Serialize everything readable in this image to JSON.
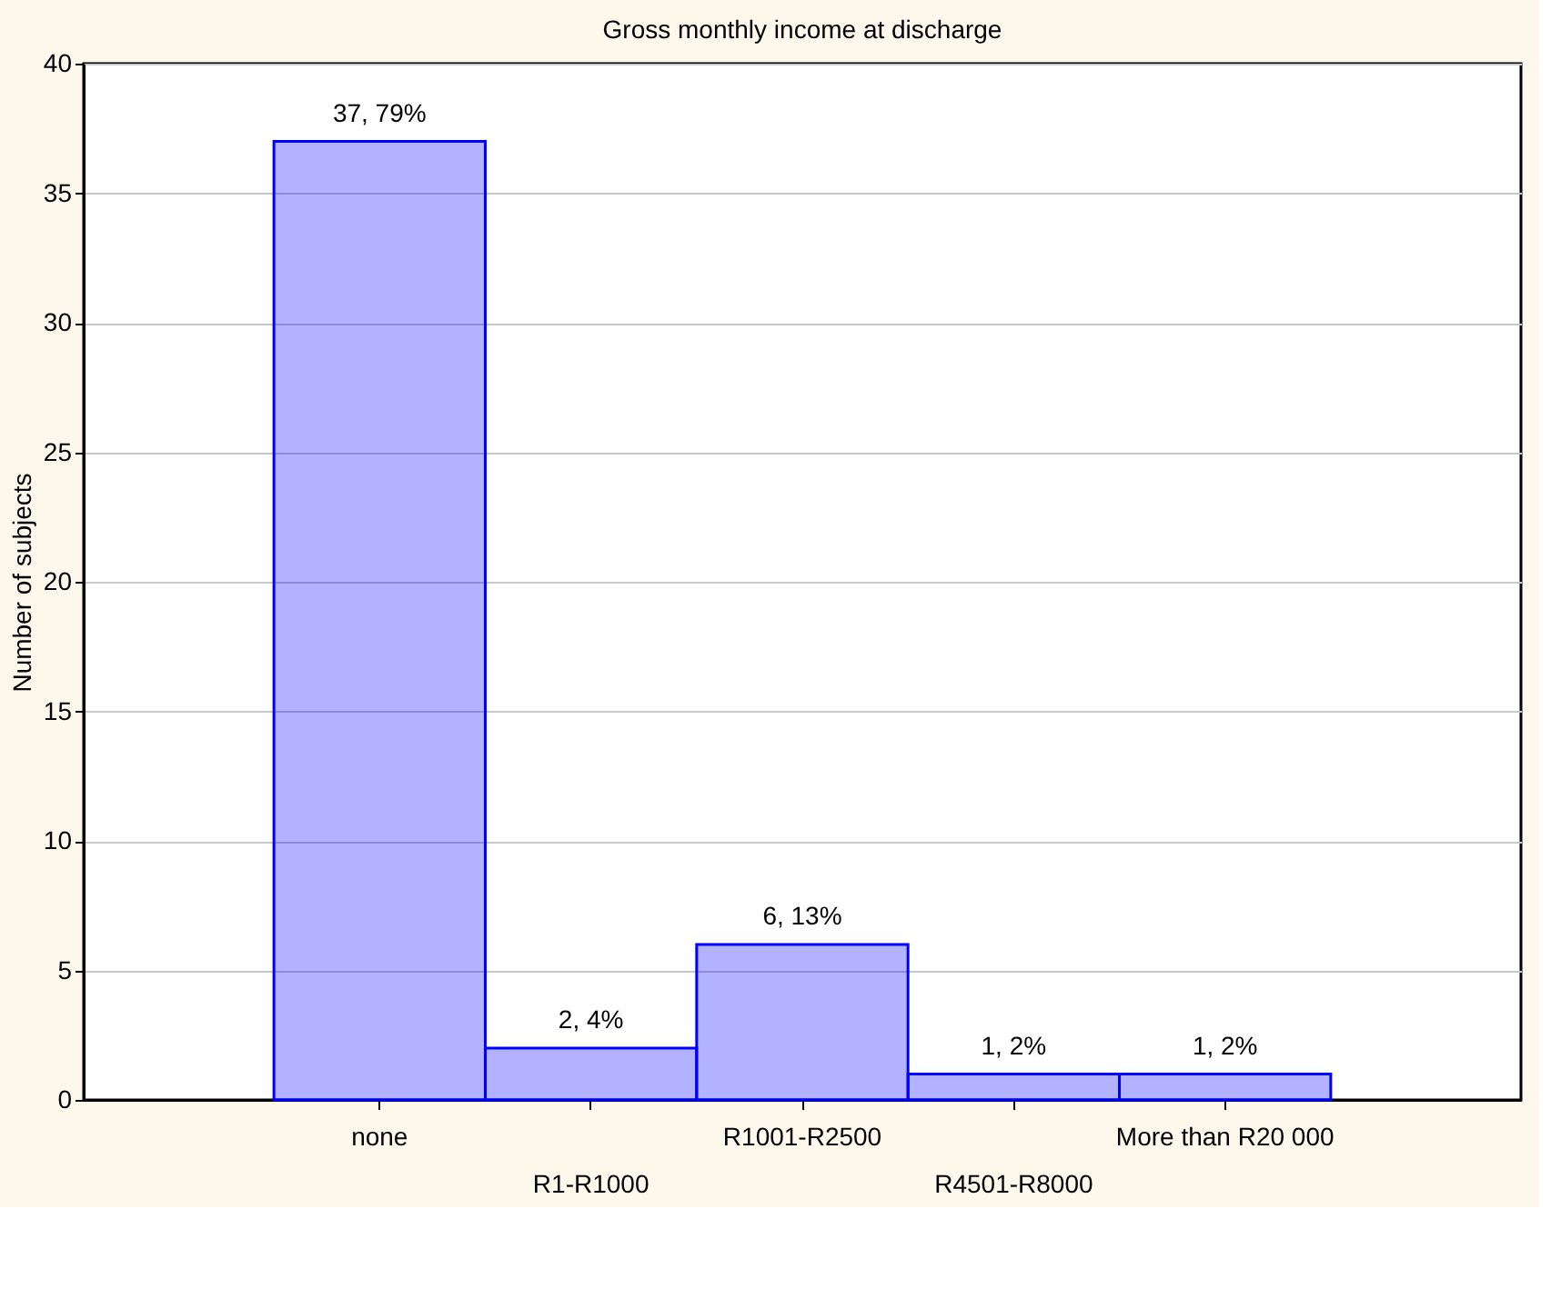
{
  "chart_data": {
    "type": "bar",
    "title": "Gross monthly income at discharge",
    "ylabel": "Number of subjects",
    "categories": [
      "none",
      "R1-R1000",
      "R1001-R2500",
      "R4501-R8000",
      "More than R20 000"
    ],
    "values": [
      37,
      2,
      6,
      1,
      1
    ],
    "value_labels": [
      "37, 79%",
      "2, 4%",
      "6, 13%",
      "1, 2%",
      "1, 2%"
    ],
    "color": "#0000ff",
    "ylim": [
      0,
      40
    ],
    "yticks": [
      0,
      5,
      10,
      15,
      20,
      25,
      30,
      35,
      40
    ],
    "grid": "y"
  }
}
